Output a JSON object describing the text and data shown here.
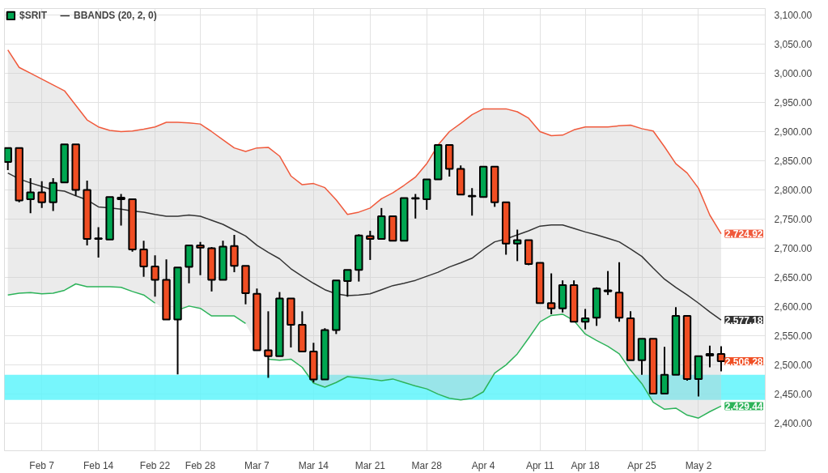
{
  "chart_data": {
    "type": "candlestick",
    "categories": [
      null,
      null,
      null,
      "Feb 7",
      null,
      null,
      null,
      null,
      "Feb 14",
      null,
      null,
      null,
      null,
      "Feb 22",
      null,
      null,
      null,
      "Feb 28",
      null,
      null,
      null,
      null,
      "Mar 7",
      null,
      null,
      null,
      null,
      "Mar 14",
      null,
      null,
      null,
      null,
      "Mar 21",
      null,
      null,
      null,
      null,
      "Mar 28",
      null,
      null,
      null,
      null,
      "Apr 4",
      null,
      null,
      null,
      null,
      "Apr 11",
      null,
      null,
      null,
      "Apr 18",
      null,
      null,
      null,
      null,
      "Apr 25",
      null,
      null,
      null,
      null,
      "May 2",
      null,
      null
    ],
    "ylim": [
      2353,
      3111
    ],
    "yticks": [
      {
        "value": 2400,
        "label": "2,400.00"
      },
      {
        "value": 2450,
        "label": "2,450.00"
      },
      {
        "value": 2500,
        "label": "2,500.00"
      },
      {
        "value": 2550,
        "label": "2,550.00"
      },
      {
        "value": 2600,
        "label": "2,600.00"
      },
      {
        "value": 2650,
        "label": "2,650.00"
      },
      {
        "value": 2700,
        "label": "2,700.00"
      },
      {
        "value": 2750,
        "label": "2,750.00"
      },
      {
        "value": 2800,
        "label": "2,800.00"
      },
      {
        "value": 2850,
        "label": "2,850.00"
      },
      {
        "value": 2900,
        "label": "2,900.00"
      },
      {
        "value": 2950,
        "label": "2,950.00"
      },
      {
        "value": 3000,
        "label": "3,000.00"
      },
      {
        "value": 3050,
        "label": "3,050.00"
      },
      {
        "value": 3100,
        "label": "3,100.00"
      }
    ],
    "grid": true,
    "legend": "top left",
    "bands": [
      {
        "axis": "y",
        "from": 2440,
        "to": 2483,
        "color": "#5ff5fb"
      }
    ],
    "series": [
      {
        "name": "$SRIT",
        "type": "candlestick",
        "ohlc": [
          [
            2848,
            2873,
            2834,
            2872
          ],
          [
            2872,
            2872,
            2779,
            2782
          ],
          [
            2784,
            2820,
            2760,
            2796
          ],
          [
            2796,
            2815,
            2769,
            2779
          ],
          [
            2779,
            2820,
            2764,
            2812
          ],
          [
            2813,
            2878,
            2813,
            2878
          ],
          [
            2878,
            2878,
            2790,
            2800
          ],
          [
            2800,
            2816,
            2705,
            2716
          ],
          [
            2717,
            2736,
            2684,
            2716
          ],
          [
            2715,
            2788,
            2715,
            2788
          ],
          [
            2787,
            2793,
            2739,
            2784
          ],
          [
            2784,
            2784,
            2694,
            2698
          ],
          [
            2698,
            2713,
            2651,
            2669
          ],
          [
            2669,
            2688,
            2617,
            2646
          ],
          [
            2646,
            2681,
            2578,
            2578
          ],
          [
            2578,
            2667,
            2484,
            2667
          ],
          [
            2668,
            2705,
            2640,
            2705
          ],
          [
            2705,
            2711,
            2654,
            2701
          ],
          [
            2700,
            2702,
            2626,
            2646
          ],
          [
            2646,
            2713,
            2646,
            2703
          ],
          [
            2704,
            2723,
            2659,
            2670
          ],
          [
            2670,
            2670,
            2604,
            2623
          ],
          [
            2622,
            2631,
            2525,
            2525
          ],
          [
            2525,
            2592,
            2478,
            2515
          ],
          [
            2515,
            2625,
            2515,
            2614
          ],
          [
            2614,
            2614,
            2530,
            2569
          ],
          [
            2569,
            2592,
            2523,
            2523
          ],
          [
            2523,
            2538,
            2470,
            2475
          ],
          [
            2475,
            2563,
            2475,
            2560
          ],
          [
            2560,
            2645,
            2553,
            2645
          ],
          [
            2644,
            2663,
            2617,
            2663
          ],
          [
            2663,
            2724,
            2643,
            2722
          ],
          [
            2721,
            2730,
            2680,
            2716
          ],
          [
            2716,
            2769,
            2716,
            2755
          ],
          [
            2755,
            2755,
            2713,
            2713
          ],
          [
            2713,
            2786,
            2713,
            2786
          ],
          [
            2786,
            2793,
            2751,
            2785
          ],
          [
            2784,
            2818,
            2766,
            2818
          ],
          [
            2818,
            2877,
            2818,
            2877
          ],
          [
            2877,
            2877,
            2823,
            2836
          ],
          [
            2836,
            2842,
            2792,
            2792
          ],
          [
            2790,
            2803,
            2756,
            2789
          ],
          [
            2788,
            2840,
            2788,
            2840
          ],
          [
            2840,
            2840,
            2771,
            2779
          ],
          [
            2779,
            2779,
            2689,
            2708
          ],
          [
            2708,
            2732,
            2678,
            2714
          ],
          [
            2714,
            2714,
            2671,
            2673
          ],
          [
            2675,
            2675,
            2606,
            2606
          ],
          [
            2606,
            2657,
            2587,
            2597
          ],
          [
            2597,
            2645,
            2590,
            2637
          ],
          [
            2637,
            2645,
            2574,
            2574
          ],
          [
            2574,
            2596,
            2561,
            2580
          ],
          [
            2581,
            2633,
            2567,
            2631
          ],
          [
            2628,
            2661,
            2620,
            2626
          ],
          [
            2624,
            2676,
            2574,
            2581
          ],
          [
            2580,
            2592,
            2508,
            2508
          ],
          [
            2508,
            2545,
            2483,
            2545
          ],
          [
            2545,
            2545,
            2451,
            2451
          ],
          [
            2451,
            2531,
            2451,
            2483
          ],
          [
            2483,
            2599,
            2483,
            2584
          ],
          [
            2584,
            2585,
            2473,
            2476
          ],
          [
            2476,
            2515,
            2446,
            2515
          ],
          [
            2516,
            2533,
            2496,
            2519
          ],
          [
            2519,
            2532,
            2489,
            2506.28
          ]
        ],
        "colors": [
          "#00a651",
          "#f04e23",
          "#00a651",
          "#f04e23",
          "#00a651",
          "#00a651",
          "#f04e23",
          "#f04e23",
          "#f04e23",
          "#00a651",
          "#f04e23",
          "#f04e23",
          "#f04e23",
          "#f04e23",
          "#f04e23",
          "#00a651",
          "#00a651",
          "#f04e23",
          "#f04e23",
          "#00a651",
          "#f04e23",
          "#f04e23",
          "#f04e23",
          "#f04e23",
          "#00a651",
          "#f04e23",
          "#f04e23",
          "#f04e23",
          "#00a651",
          "#00a651",
          "#00a651",
          "#00a651",
          "#f04e23",
          "#00a651",
          "#f04e23",
          "#00a651",
          "#f04e23",
          "#00a651",
          "#00a651",
          "#f04e23",
          "#f04e23",
          "#f04e23",
          "#00a651",
          "#f04e23",
          "#f04e23",
          "#00a651",
          "#f04e23",
          "#f04e23",
          "#f04e23",
          "#00a651",
          "#f04e23",
          "#00a651",
          "#00a651",
          "#f04e23",
          "#f04e23",
          "#f04e23",
          "#00a651",
          "#f04e23",
          "#00a651",
          "#00a651",
          "#f04e23",
          "#00a651",
          "#00a651",
          "#f04e23"
        ],
        "value_labels": [
          null,
          null,
          null,
          null,
          null,
          null,
          null,
          null,
          null,
          null,
          null,
          null,
          null,
          null,
          null,
          null,
          null,
          null,
          null,
          null,
          null,
          null,
          null,
          null,
          null,
          null,
          null,
          null,
          null,
          null,
          null,
          null,
          null,
          null,
          null,
          null,
          null,
          null,
          null,
          null,
          null,
          null,
          null,
          null,
          null,
          null,
          null,
          null,
          null,
          null,
          null,
          null,
          null,
          null,
          null,
          null,
          null,
          null,
          null,
          null,
          null,
          null,
          null,
          "2,506.28"
        ]
      },
      {
        "type": "line",
        "color": "#f05a3c",
        "values": [
          3040,
          3010,
          3000,
          2990,
          2980,
          2970,
          2945,
          2920,
          2908,
          2902,
          2900,
          2901,
          2904,
          2908,
          2916,
          2916,
          2915,
          2913,
          2900,
          2886,
          2872,
          2866,
          2872,
          2873,
          2858,
          2824,
          2809,
          2811,
          2804,
          2783,
          2758,
          2762,
          2769,
          2785,
          2795,
          2808,
          2822,
          2845,
          2877,
          2900,
          2914,
          2929,
          2939,
          2939,
          2939,
          2934,
          2923,
          2900,
          2893,
          2894,
          2903,
          2908,
          2908,
          2908,
          2910,
          2911,
          2905,
          2901,
          2874,
          2845,
          2829,
          2803,
          2757,
          2724.92
        ],
        "value_labels": [
          null,
          null,
          null,
          null,
          null,
          null,
          null,
          null,
          null,
          null,
          null,
          null,
          null,
          null,
          null,
          null,
          null,
          null,
          null,
          null,
          null,
          null,
          null,
          null,
          null,
          null,
          null,
          null,
          null,
          null,
          null,
          null,
          null,
          null,
          null,
          null,
          null,
          null,
          null,
          null,
          null,
          null,
          null,
          null,
          null,
          null,
          null,
          null,
          null,
          null,
          null,
          null,
          null,
          null,
          null,
          null,
          null,
          null,
          null,
          null,
          null,
          null,
          null,
          "2,724.92"
        ]
      },
      {
        "name": "BBANDS (20, 2, 0)",
        "type": "line",
        "color": "#333333",
        "values": [
          2829,
          2819,
          2812,
          2806,
          2800,
          2798,
          2790,
          2783,
          2771,
          2769,
          2767,
          2764,
          2762,
          2758,
          2755,
          2755,
          2757,
          2755,
          2748,
          2741,
          2731,
          2721,
          2705,
          2693,
          2682,
          2665,
          2652,
          2640,
          2629,
          2622,
          2619,
          2620,
          2622,
          2629,
          2636,
          2640,
          2645,
          2652,
          2659,
          2668,
          2675,
          2683,
          2698,
          2711,
          2716,
          2723,
          2730,
          2738,
          2740,
          2740,
          2734,
          2728,
          2723,
          2717,
          2711,
          2699,
          2686,
          2666,
          2647,
          2633,
          2620,
          2606,
          2591,
          2577.18
        ],
        "upper": [
          3040,
          3010,
          3000,
          2990,
          2980,
          2970,
          2945,
          2920,
          2908,
          2902,
          2900,
          2901,
          2904,
          2908,
          2916,
          2916,
          2915,
          2913,
          2900,
          2886,
          2872,
          2866,
          2872,
          2873,
          2858,
          2824,
          2809,
          2811,
          2804,
          2783,
          2758,
          2762,
          2769,
          2785,
          2795,
          2808,
          2822,
          2845,
          2877,
          2900,
          2914,
          2929,
          2939,
          2939,
          2939,
          2934,
          2923,
          2900,
          2893,
          2894,
          2903,
          2908,
          2908,
          2908,
          2910,
          2911,
          2905,
          2901,
          2874,
          2845,
          2829,
          2803,
          2757,
          2724.92
        ],
        "lower": [
          2620,
          2623,
          2624,
          2622,
          2623,
          2628,
          2639,
          2634,
          2634,
          2634,
          2633,
          2626,
          2620,
          2606,
          2594,
          2594,
          2601,
          2597,
          2584,
          2584,
          2584,
          2571,
          2535,
          2510,
          2508,
          2510,
          2496,
          2469,
          2462,
          2470,
          2480,
          2478,
          2476,
          2473,
          2476,
          2470,
          2464,
          2459,
          2450,
          2443,
          2440,
          2443,
          2454,
          2486,
          2500,
          2519,
          2546,
          2574,
          2585,
          2587,
          2576,
          2553,
          2542,
          2532,
          2519,
          2491,
          2468,
          2436,
          2424,
          2426,
          2414,
          2409,
          2420,
          2429.44
        ],
        "value_labels": [
          null,
          null,
          null,
          null,
          null,
          null,
          null,
          null,
          null,
          null,
          null,
          null,
          null,
          null,
          null,
          null,
          null,
          null,
          null,
          null,
          null,
          null,
          null,
          null,
          null,
          null,
          null,
          null,
          null,
          null,
          null,
          null,
          null,
          null,
          null,
          null,
          null,
          null,
          null,
          null,
          null,
          null,
          null,
          null,
          null,
          null,
          null,
          null,
          null,
          null,
          null,
          null,
          null,
          null,
          null,
          null,
          null,
          null,
          null,
          null,
          null,
          null,
          null,
          "2,577.18"
        ]
      },
      {
        "type": "line",
        "color": "#2db35a",
        "values": [
          2620,
          2623,
          2624,
          2622,
          2623,
          2628,
          2639,
          2634,
          2634,
          2634,
          2633,
          2626,
          2620,
          2606,
          null,
          2594,
          2601,
          2597,
          2584,
          2584,
          2584,
          2571,
          null,
          2510,
          2508,
          2510,
          2496,
          2469,
          2462,
          2470,
          2480,
          2478,
          2476,
          2473,
          2476,
          2470,
          2464,
          2459,
          2450,
          2443,
          2440,
          2443,
          2454,
          2486,
          2500,
          2519,
          2546,
          2574,
          2585,
          2587,
          2576,
          2553,
          2542,
          2532,
          2519,
          2491,
          2468,
          2436,
          2424,
          2426,
          2414,
          2409,
          2420,
          2429.44
        ],
        "value_labels": [
          null,
          null,
          null,
          null,
          null,
          null,
          null,
          null,
          null,
          null,
          null,
          null,
          null,
          null,
          null,
          null,
          null,
          null,
          null,
          null,
          null,
          null,
          null,
          null,
          null,
          null,
          null,
          null,
          null,
          null,
          null,
          null,
          null,
          null,
          null,
          null,
          null,
          null,
          null,
          null,
          null,
          null,
          null,
          null,
          null,
          null,
          null,
          null,
          null,
          null,
          null,
          null,
          null,
          null,
          null,
          null,
          null,
          null,
          null,
          null,
          null,
          null,
          null,
          "2,429.44"
        ]
      }
    ]
  }
}
